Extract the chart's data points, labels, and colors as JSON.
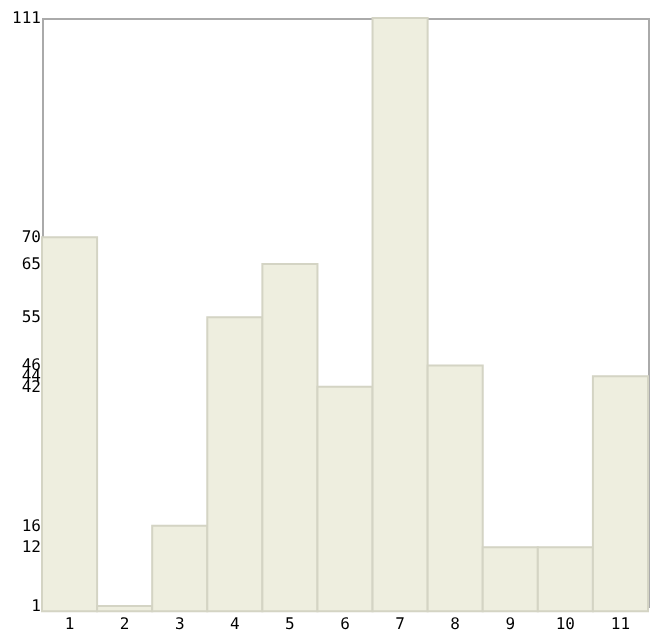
{
  "chart_data": {
    "type": "bar",
    "categories": [
      "1",
      "2",
      "3",
      "4",
      "5",
      "6",
      "7",
      "8",
      "9",
      "10",
      "11"
    ],
    "values": [
      70,
      1,
      16,
      55,
      65,
      42,
      111,
      46,
      12,
      12,
      44
    ],
    "color": "#eeeedf",
    "ylim": [
      1,
      111
    ],
    "yticks": [
      1,
      12,
      16,
      42,
      44,
      46,
      55,
      65,
      70,
      111
    ],
    "grid": false
  }
}
